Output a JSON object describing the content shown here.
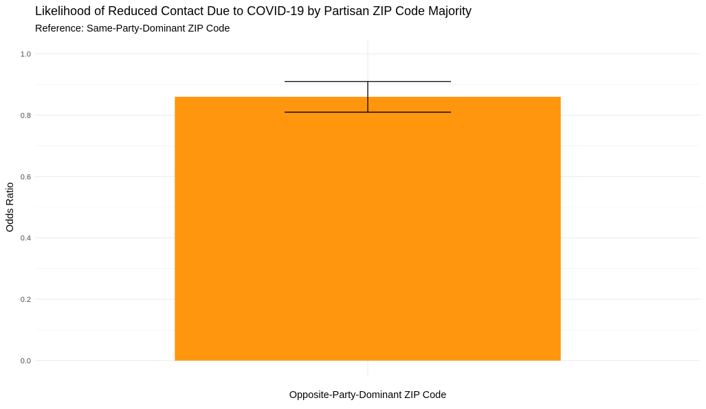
{
  "chart_data": {
    "type": "bar",
    "title": "Likelihood of Reduced Contact Due to COVID-19 by Partisan ZIP Code Majority",
    "subtitle": "Reference: Same-Party-Dominant ZIP Code",
    "xlabel": "",
    "ylabel": "Odds Ratio",
    "categories": [
      "Opposite-Party-Dominant ZIP Code"
    ],
    "values": [
      0.86
    ],
    "error_bars": [
      {
        "lower": 0.81,
        "upper": 0.91
      }
    ],
    "ylim": [
      0,
      1.05
    ],
    "y_ticks": [
      0.0,
      0.2,
      0.4,
      0.6,
      0.8,
      1.0
    ],
    "y_tick_labels": [
      "0.0",
      "0.2",
      "0.4",
      "0.6",
      "0.8",
      "1.0"
    ],
    "bar_color": "#FF960D",
    "grid": true,
    "legend": "none"
  }
}
